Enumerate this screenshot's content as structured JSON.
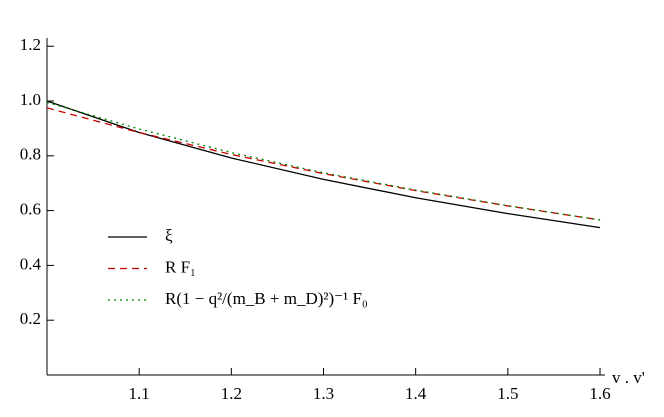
{
  "chart_data": {
    "type": "line",
    "x_label": "v . v'",
    "x": [
      1.0,
      1.1,
      1.2,
      1.3,
      1.4,
      1.5,
      1.6
    ],
    "series": [
      {
        "name": "ξ",
        "color": "#000000",
        "dash": "solid",
        "values": [
          1.0,
          0.885,
          0.792,
          0.714,
          0.647,
          0.589,
          0.538
        ]
      },
      {
        "name": "R F₁",
        "color": "#cc0000",
        "dash": "dashed",
        "values": [
          0.975,
          0.885,
          0.805,
          0.735,
          0.673,
          0.617,
          0.566
        ]
      },
      {
        "name": "R(1 − q²/(m_B + m_D)²)⁻¹ F₀",
        "color": "#008800",
        "dash": "dotted",
        "values": [
          0.995,
          0.898,
          0.812,
          0.738,
          0.675,
          0.618,
          0.566
        ]
      }
    ],
    "xlim": [
      1.0,
      1.6
    ],
    "ylim": [
      0,
      1.23
    ],
    "xticks": [
      1.1,
      1.2,
      1.3,
      1.4,
      1.5,
      1.6
    ],
    "yticks": [
      0.2,
      0.4,
      0.6,
      0.8,
      {
        "value": 1.0,
        "label": "1.0"
      },
      1.2
    ],
    "grid": false
  }
}
